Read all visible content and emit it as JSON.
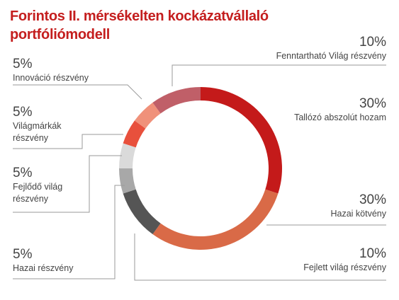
{
  "chart_data": {
    "type": "pie",
    "variant": "donut",
    "title": "Forintos II. mérsékelten kockázatvállaló portfóliómodell",
    "start": "top, clockwise",
    "slices": [
      {
        "name": "Tallózó abszolút hozam",
        "value": 30,
        "label": "30%",
        "color": "#c41a1a"
      },
      {
        "name": "Hazai kötvény",
        "value": 30,
        "label": "30%",
        "color": "#d96a47"
      },
      {
        "name": "Fejlett világ részvény",
        "value": 10,
        "label": "10%",
        "color": "#555555"
      },
      {
        "name": "Hazai részvény",
        "value": 5,
        "label": "5%",
        "color": "#a8a8a8"
      },
      {
        "name": "Fejlődő világ részvény",
        "value": 5,
        "label": "5%",
        "color": "#dadada"
      },
      {
        "name": "Világmárkák részvény",
        "value": 5,
        "label": "5%",
        "color": "#e8503c"
      },
      {
        "name": "Innováció részvény",
        "value": 5,
        "label": "5%",
        "color": "#f0917a"
      },
      {
        "name": "Fenntartható Világ részvény",
        "value": 10,
        "label": "10%",
        "color": "#c05f68"
      }
    ]
  },
  "labels": {
    "fenntarthato": {
      "pct": "10%",
      "line1": "Fenntartható Világ részvény",
      "line2": ""
    },
    "tallozo": {
      "pct": "30%",
      "line1": "Tallózó abszolút hozam",
      "line2": ""
    },
    "hazai_kotveny": {
      "pct": "30%",
      "line1": "Hazai kötvény",
      "line2": ""
    },
    "fejlett": {
      "pct": "10%",
      "line1": "Fejlett világ részvény",
      "line2": ""
    },
    "innovacio": {
      "pct": "5%",
      "line1": "Innováció részvény",
      "line2": ""
    },
    "vilagmarkak": {
      "pct": "5%",
      "line1": "Világmárkák",
      "line2": "részvény"
    },
    "fejlodo": {
      "pct": "5%",
      "line1": "Fejlődő világ",
      "line2": "részvény"
    },
    "hazai_reszveny": {
      "pct": "5%",
      "line1": "Hazai részvény",
      "line2": ""
    }
  }
}
